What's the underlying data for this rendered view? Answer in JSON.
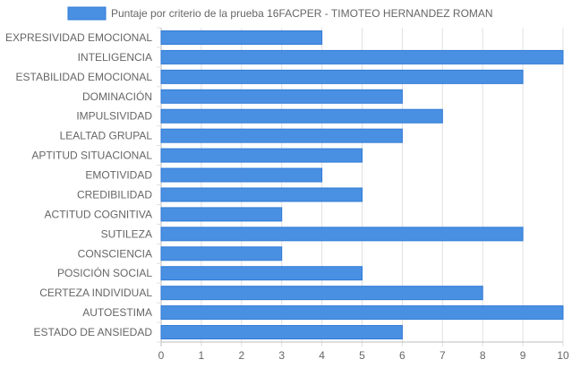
{
  "chart_data": {
    "type": "bar",
    "orientation": "horizontal",
    "categories": [
      "EXPRESIVIDAD EMOCIONAL",
      "INTELIGENCIA",
      "ESTABILIDAD EMOCIONAL",
      "DOMINACIÓN",
      "IMPULSIVIDAD",
      "LEALTAD GRUPAL",
      "APTITUD SITUACIONAL",
      "EMOTIVIDAD",
      "CREDIBILIDAD",
      "ACTITUD COGNITIVA",
      "SUTILEZA",
      "CONSCIENCIA",
      "POSICIÓN SOCIAL",
      "CERTEZA INDIVIDUAL",
      "AUTOESTIMA",
      "ESTADO DE ANSIEDAD"
    ],
    "series": [
      {
        "name": "Puntaje por criterio de la prueba 16FACPER - TIMOTEO HERNANDEZ ROMAN",
        "values": [
          4,
          10,
          9,
          6,
          7,
          6,
          5,
          4,
          5,
          3,
          9,
          3,
          5,
          8,
          10,
          6
        ]
      }
    ],
    "xlim": [
      0,
      10
    ],
    "xticks": [
      "0",
      "1",
      "2",
      "3",
      "4",
      "5",
      "6",
      "7",
      "8",
      "9",
      "10"
    ],
    "grid": true,
    "legend_position": "top",
    "colors": {
      "bar_fill": "#4a90e2",
      "bar_stroke": "#2f7ad6",
      "grid": "#e0e0e0",
      "axis": "#bdbdbd",
      "text": "#666666"
    }
  }
}
